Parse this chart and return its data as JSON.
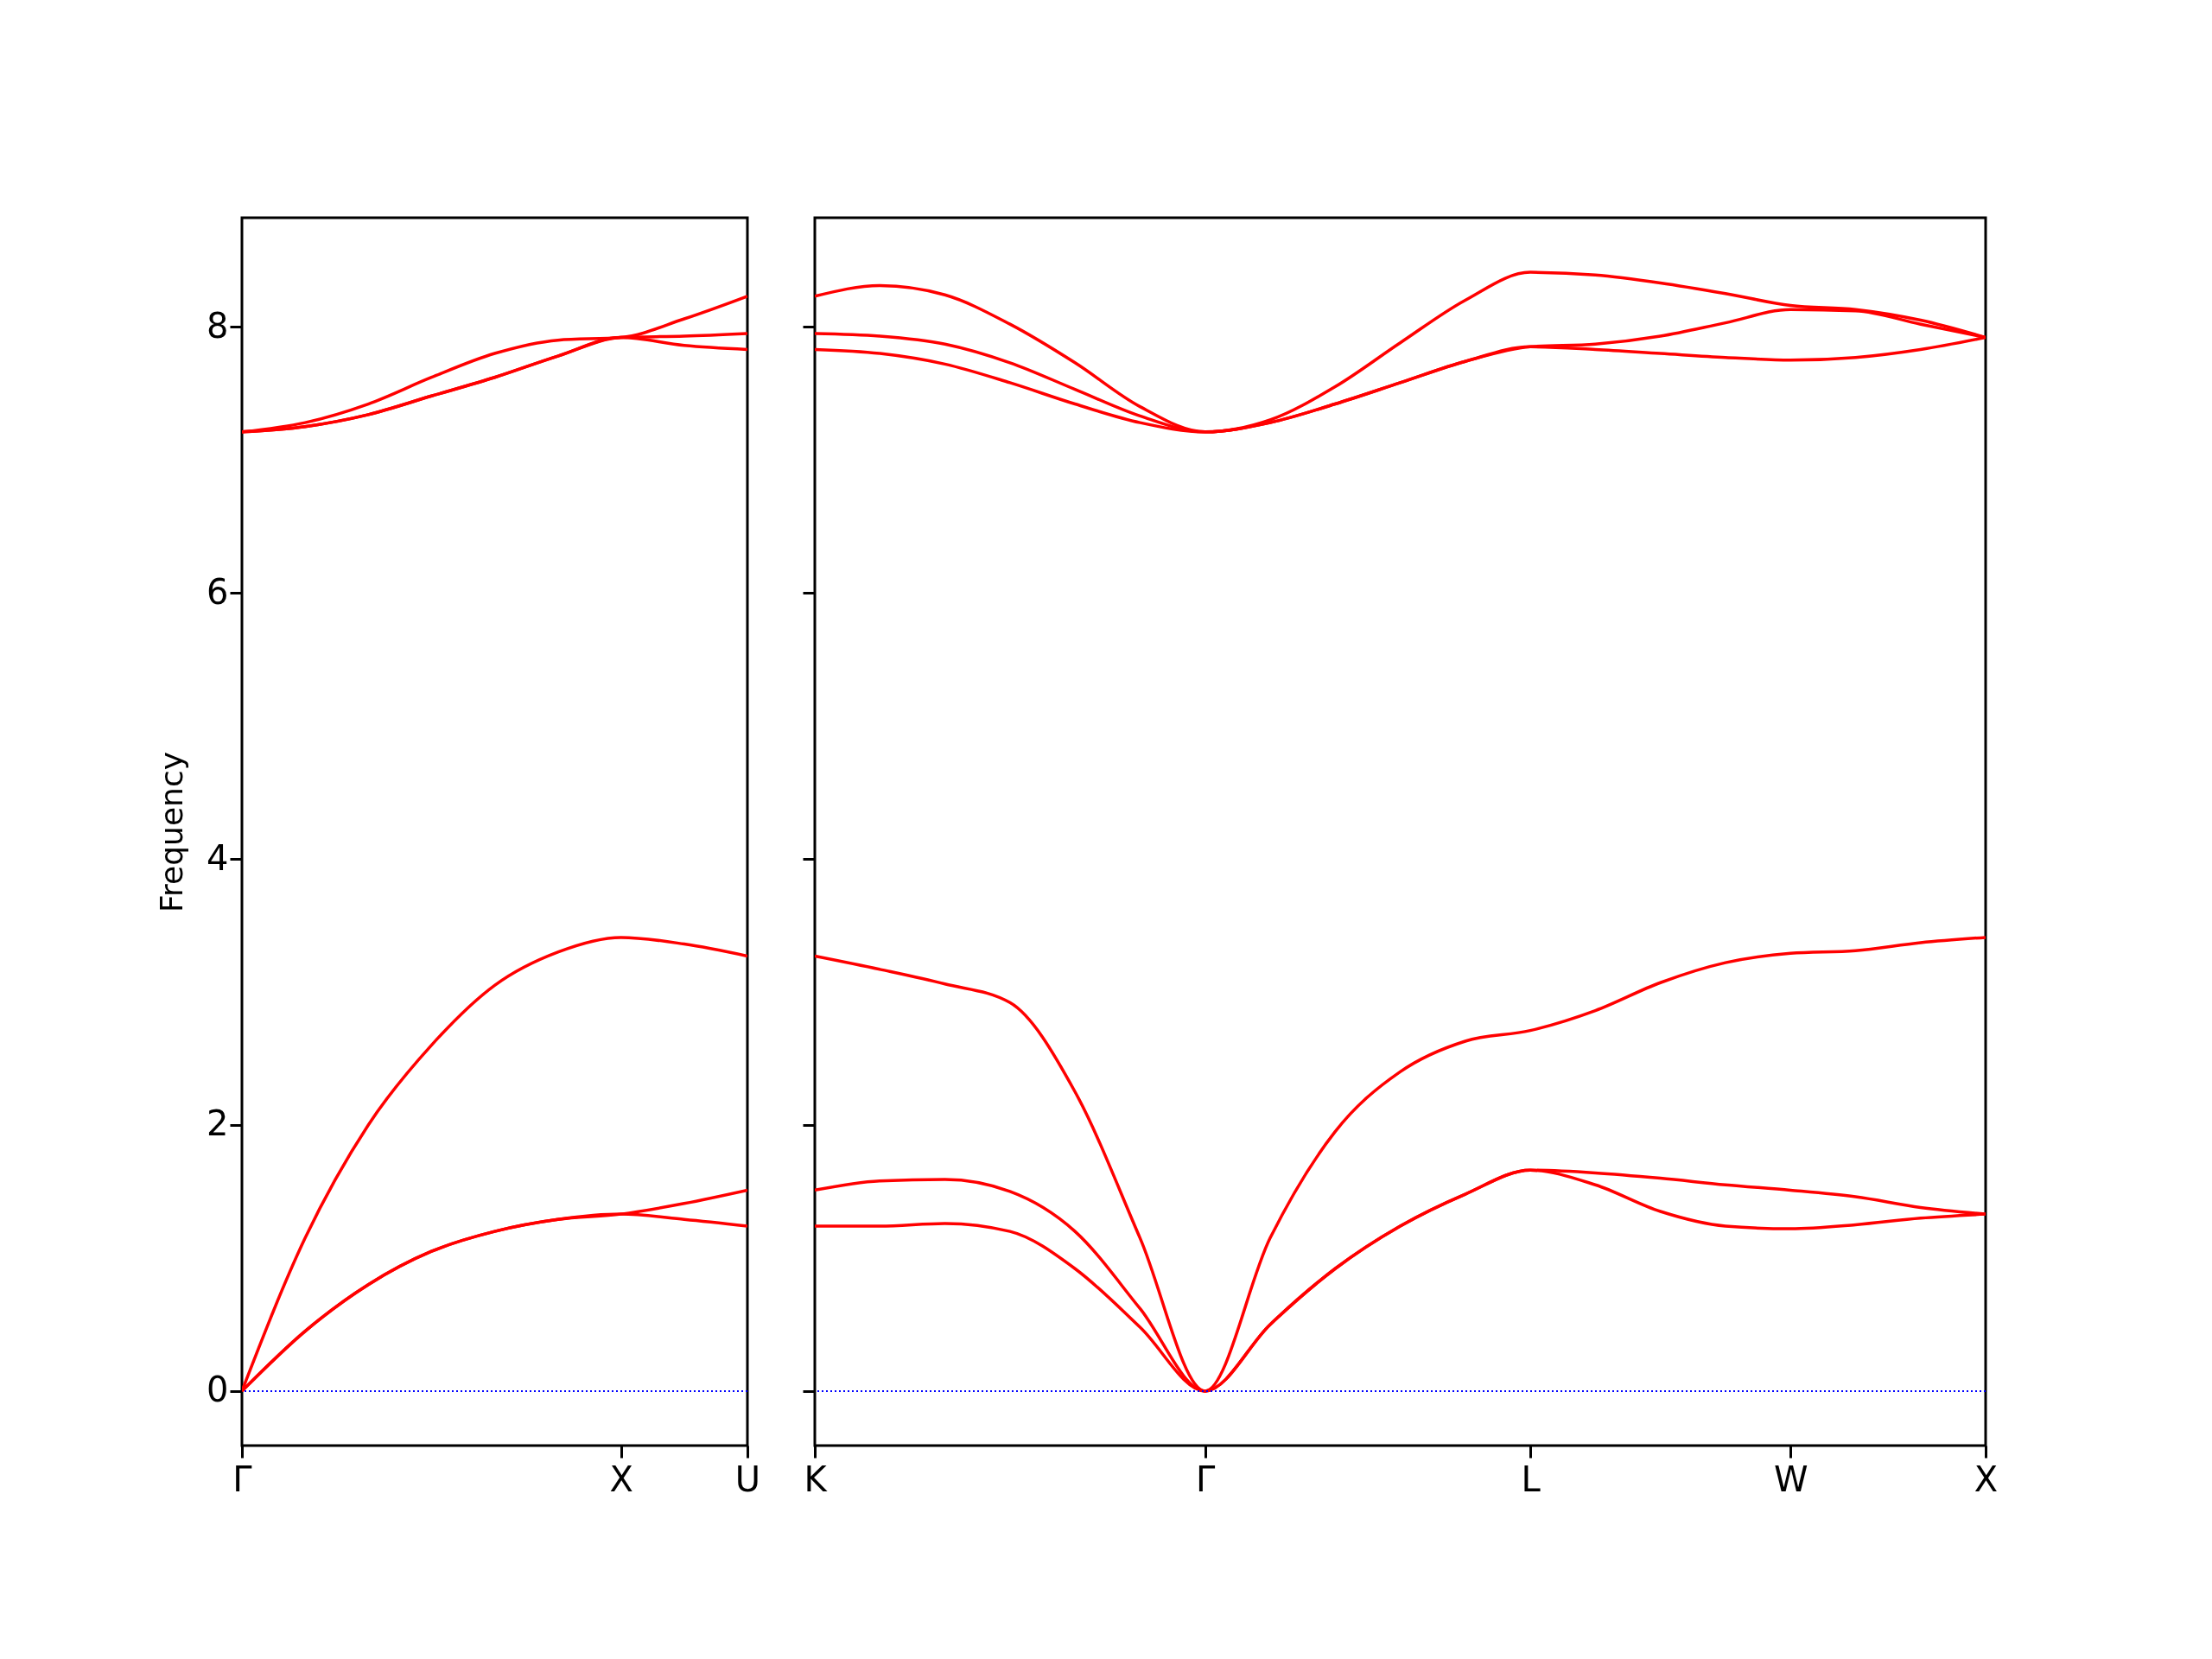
{
  "chart_data": [
    {
      "type": "line",
      "ylabel": "Frequency",
      "categories": [
        "Γ",
        null,
        null,
        null,
        null,
        null,
        "X",
        null,
        "U"
      ],
      "ylim": [
        -0.41,
        8.82
      ],
      "yticks": [
        0,
        2,
        4,
        6,
        8
      ],
      "grid": false,
      "legend": false,
      "line_style": "solid",
      "marker": "none",
      "ref_lines": [
        {
          "axis": "y",
          "value": 0,
          "color": "#0000ff",
          "line_style": "dotted"
        }
      ],
      "series": [
        {
          "color": "#ff0000",
          "values": [
            0,
            0.45,
            0.8,
            1.05,
            1.2,
            1.29,
            1.33,
            1.29,
            1.24
          ]
        },
        {
          "color": "#ff0000",
          "values": [
            0,
            0.45,
            0.8,
            1.05,
            1.2,
            1.29,
            1.33,
            1.41,
            1.51
          ]
        },
        {
          "color": "#ff0000",
          "values": [
            0,
            1.15,
            2.0,
            2.6,
            3.05,
            3.3,
            3.41,
            3.36,
            3.27
          ]
        },
        {
          "color": "#ff0000",
          "values": [
            7.21,
            7.25,
            7.34,
            7.48,
            7.62,
            7.78,
            7.92,
            7.86,
            7.83
          ]
        },
        {
          "color": "#ff0000",
          "values": [
            7.21,
            7.25,
            7.34,
            7.48,
            7.62,
            7.78,
            7.92,
            7.93,
            7.95
          ]
        },
        {
          "color": "#ff0000",
          "values": [
            7.21,
            7.28,
            7.42,
            7.62,
            7.8,
            7.9,
            7.92,
            8.06,
            8.23
          ]
        }
      ]
    },
    {
      "type": "line",
      "categories": [
        "K",
        null,
        null,
        null,
        null,
        null,
        "Γ",
        null,
        null,
        null,
        null,
        "L",
        null,
        null,
        null,
        "W",
        null,
        null,
        "X"
      ],
      "ylim": [
        -0.41,
        8.82
      ],
      "yticks": [
        0,
        2,
        4,
        6,
        8
      ],
      "grid": false,
      "legend": false,
      "line_style": "solid",
      "marker": "none",
      "tick_labels": "x",
      "ref_lines": [
        {
          "axis": "y",
          "value": 0,
          "color": "#0000ff",
          "line_style": "dotted"
        }
      ],
      "series": [
        {
          "color": "#ff0000",
          "values": [
            1.24,
            1.24,
            1.26,
            1.2,
            0.92,
            0.48,
            0,
            0.5,
            0.92,
            1.24,
            1.48,
            1.66,
            1.55,
            1.35,
            1.24,
            1.22,
            1.25,
            1.3,
            1.33
          ]
        },
        {
          "color": "#ff0000",
          "values": [
            1.51,
            1.58,
            1.59,
            1.5,
            1.2,
            0.62,
            0,
            0.5,
            0.92,
            1.24,
            1.48,
            1.66,
            1.64,
            1.6,
            1.55,
            1.51,
            1.46,
            1.38,
            1.33
          ]
        },
        {
          "color": "#ff0000",
          "values": [
            3.27,
            3.17,
            3.06,
            2.92,
            2.25,
            1.15,
            0,
            1.15,
            1.95,
            2.4,
            2.63,
            2.71,
            2.86,
            3.07,
            3.22,
            3.29,
            3.31,
            3.37,
            3.41
          ]
        },
        {
          "color": "#ff0000",
          "values": [
            7.83,
            7.8,
            7.72,
            7.58,
            7.42,
            7.28,
            7.21,
            7.28,
            7.42,
            7.58,
            7.74,
            7.85,
            7.83,
            7.8,
            7.77,
            7.75,
            7.77,
            7.83,
            7.92
          ]
        },
        {
          "color": "#ff0000",
          "values": [
            7.95,
            7.93,
            7.87,
            7.73,
            7.53,
            7.33,
            7.21,
            7.28,
            7.42,
            7.58,
            7.74,
            7.85,
            7.87,
            7.93,
            8.03,
            8.13,
            8.12,
            8.02,
            7.92
          ]
        },
        {
          "color": "#ff0000",
          "values": [
            8.23,
            8.31,
            8.24,
            8.02,
            7.73,
            7.4,
            7.21,
            7.3,
            7.55,
            7.88,
            8.2,
            8.41,
            8.39,
            8.33,
            8.25,
            8.16,
            8.13,
            8.05,
            7.92
          ]
        }
      ]
    }
  ]
}
